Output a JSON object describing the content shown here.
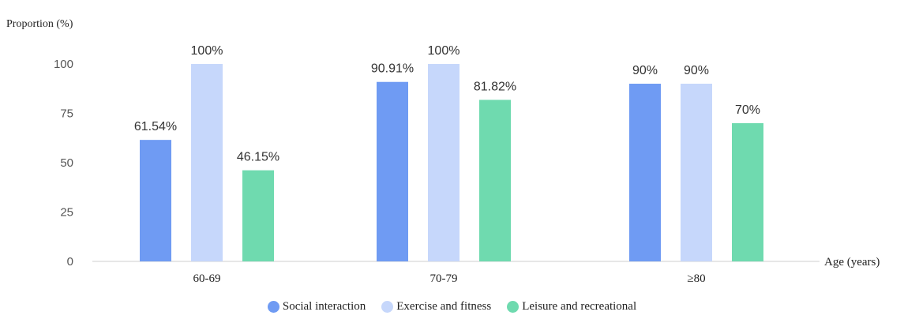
{
  "chart_data": {
    "type": "bar",
    "ylabel": "Proportion (%)",
    "xlabel": "Age  (years)",
    "ylim": [
      0,
      100
    ],
    "yticks": [
      0,
      25,
      50,
      75,
      100
    ],
    "categories": [
      "60-69",
      "70-79",
      "≥80"
    ],
    "series": [
      {
        "name": "Social interaction",
        "values": [
          61.54,
          90.91,
          90
        ],
        "labels": [
          "61.54%",
          "90.91%",
          "90%"
        ]
      },
      {
        "name": "Exercise and fitness",
        "values": [
          100,
          100,
          90
        ],
        "labels": [
          "100%",
          "100%",
          "90%"
        ]
      },
      {
        "name": "Leisure and recreational",
        "values": [
          46.15,
          81.82,
          70
        ],
        "labels": [
          "46.15%",
          "81.82%",
          "70%"
        ]
      }
    ],
    "colors": [
      "#6f9bf3",
      "#c6d7fb",
      "#6fdaaf"
    ],
    "grid": false,
    "legend_position": "bottom"
  }
}
